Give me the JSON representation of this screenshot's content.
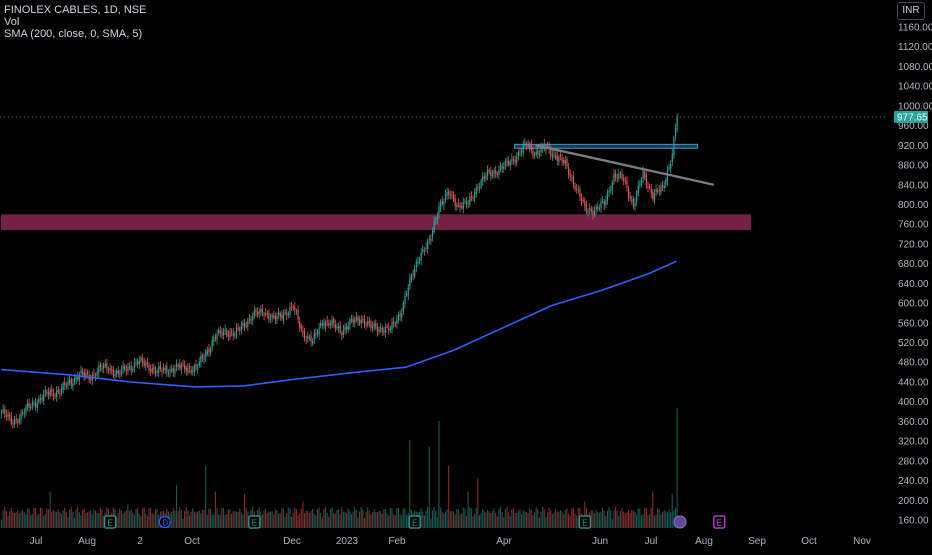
{
  "legend": {
    "symbol_line": "FINOLEX CABLES, 1D, NSE",
    "volume_label": "Vol",
    "sma_label": "SMA (200, close, 0, SMA, 5)"
  },
  "currency_button": "INR",
  "colors": {
    "background": "#000000",
    "up": "#26a69a",
    "down": "#ef5350",
    "sma": "#2962ff",
    "support_zone": "#9c2c5c",
    "resistance_box": "#2f6e94",
    "trendline": "#787b86",
    "last_price_bg": "#26a69a"
  },
  "chart_data": {
    "type": "candlestick",
    "title": "FINOLEX CABLES, 1D, NSE",
    "currency": "INR",
    "y_axis": {
      "ticks": [
        160,
        200,
        240,
        280,
        320,
        360,
        400,
        440,
        480,
        520,
        560,
        600,
        640,
        680,
        720,
        760,
        800,
        840,
        880,
        920,
        960,
        1000,
        1040,
        1080,
        1120,
        1160
      ],
      "tick_labels": [
        "160.00",
        "200.00",
        "240.00",
        "280.00",
        "320.00",
        "360.00",
        "400.00",
        "440.00",
        "480.00",
        "520.00",
        "560.00",
        "600.00",
        "640.00",
        "680.00",
        "720.00",
        "760.00",
        "800.00",
        "840.00",
        "880.00",
        "920.00",
        "960.00",
        "1000.00",
        "1040.00",
        "1080.00",
        "1120.00",
        "1160.00"
      ],
      "range": [
        140,
        1180
      ]
    },
    "x_axis": {
      "tick_labels": [
        "Jul",
        "Aug",
        "2",
        "Oct",
        "Dec",
        "2023",
        "Feb",
        "Apr",
        "Jun",
        "Jul",
        "Aug",
        "Sep",
        "Oct",
        "Nov"
      ]
    },
    "last_price": 977.65,
    "last_price_label": "977.65",
    "price_anchors": [
      [
        0,
        380
      ],
      [
        6,
        360
      ],
      [
        12,
        370
      ],
      [
        18,
        395
      ],
      [
        24,
        405
      ],
      [
        30,
        420
      ],
      [
        36,
        420
      ],
      [
        42,
        440
      ],
      [
        48,
        455
      ],
      [
        54,
        450
      ],
      [
        60,
        465
      ],
      [
        66,
        470
      ],
      [
        72,
        455
      ],
      [
        78,
        470
      ],
      [
        84,
        480
      ],
      [
        90,
        475
      ],
      [
        96,
        460
      ],
      [
        102,
        465
      ],
      [
        108,
        468
      ],
      [
        114,
        470
      ],
      [
        120,
        465
      ],
      [
        126,
        500
      ],
      [
        132,
        530
      ],
      [
        138,
        545
      ],
      [
        144,
        535
      ],
      [
        150,
        560
      ],
      [
        156,
        575
      ],
      [
        162,
        585
      ],
      [
        168,
        565
      ],
      [
        174,
        580
      ],
      [
        180,
        590
      ],
      [
        186,
        540
      ],
      [
        192,
        520
      ],
      [
        198,
        565
      ],
      [
        204,
        555
      ],
      [
        210,
        545
      ],
      [
        216,
        560
      ],
      [
        222,
        570
      ],
      [
        228,
        550
      ],
      [
        234,
        550
      ],
      [
        240,
        545
      ],
      [
        246,
        580
      ],
      [
        252,
        640
      ],
      [
        258,
        700
      ],
      [
        264,
        720
      ],
      [
        270,
        800
      ],
      [
        276,
        820
      ],
      [
        282,
        800
      ],
      [
        288,
        800
      ],
      [
        294,
        840
      ],
      [
        300,
        860
      ],
      [
        306,
        870
      ],
      [
        312,
        880
      ],
      [
        318,
        900
      ],
      [
        324,
        920
      ],
      [
        330,
        905
      ],
      [
        336,
        915
      ],
      [
        342,
        900
      ],
      [
        348,
        880
      ],
      [
        354,
        840
      ],
      [
        360,
        790
      ],
      [
        366,
        790
      ],
      [
        372,
        800
      ],
      [
        378,
        860
      ],
      [
        384,
        850
      ],
      [
        390,
        800
      ],
      [
        396,
        860
      ],
      [
        402,
        820
      ],
      [
        408,
        830
      ],
      [
        414,
        905
      ],
      [
        417,
        978
      ]
    ],
    "volume_spikes": [
      [
        30,
        0.3
      ],
      [
        78,
        0.2
      ],
      [
        108,
        0.35
      ],
      [
        126,
        0.5
      ],
      [
        132,
        0.3
      ],
      [
        150,
        0.28
      ],
      [
        186,
        0.22
      ],
      [
        210,
        0.18
      ],
      [
        252,
        0.7
      ],
      [
        264,
        0.65
      ],
      [
        270,
        0.85
      ],
      [
        276,
        0.5
      ],
      [
        288,
        0.3
      ],
      [
        294,
        0.4
      ],
      [
        360,
        0.22
      ],
      [
        402,
        0.3
      ],
      [
        414,
        0.28
      ],
      [
        417,
        0.95
      ]
    ],
    "sma_200": [
      [
        0,
        465
      ],
      [
        40,
        455
      ],
      [
        80,
        440
      ],
      [
        120,
        430
      ],
      [
        150,
        432
      ],
      [
        180,
        445
      ],
      [
        220,
        460
      ],
      [
        250,
        470
      ],
      [
        280,
        505
      ],
      [
        310,
        550
      ],
      [
        340,
        595
      ],
      [
        370,
        625
      ],
      [
        400,
        660
      ],
      [
        417,
        685
      ]
    ],
    "resistance_zone": {
      "from_bar": 317,
      "to_bar": 430,
      "low": 914,
      "high": 922
    },
    "support_zone": {
      "from_bar": 0,
      "to_bar": 463,
      "low": 748,
      "high": 780
    },
    "trendline": [
      [
        330,
        920
      ],
      [
        440,
        840
      ]
    ],
    "event_markers": [
      {
        "label": "E",
        "bar": 64,
        "color": "#26a69a"
      },
      {
        "label": "D",
        "bar": 98,
        "color": "#2962ff"
      },
      {
        "label": "E",
        "bar": 153,
        "color": "#26a69a"
      },
      {
        "label": "E",
        "bar": 252,
        "color": "#26a69a"
      },
      {
        "label": "E",
        "bar": 357,
        "color": "#26a69a"
      },
      {
        "label": "E",
        "bar": 440,
        "color": "#e040fb"
      }
    ],
    "volume_band": [
      140,
      205
    ]
  }
}
